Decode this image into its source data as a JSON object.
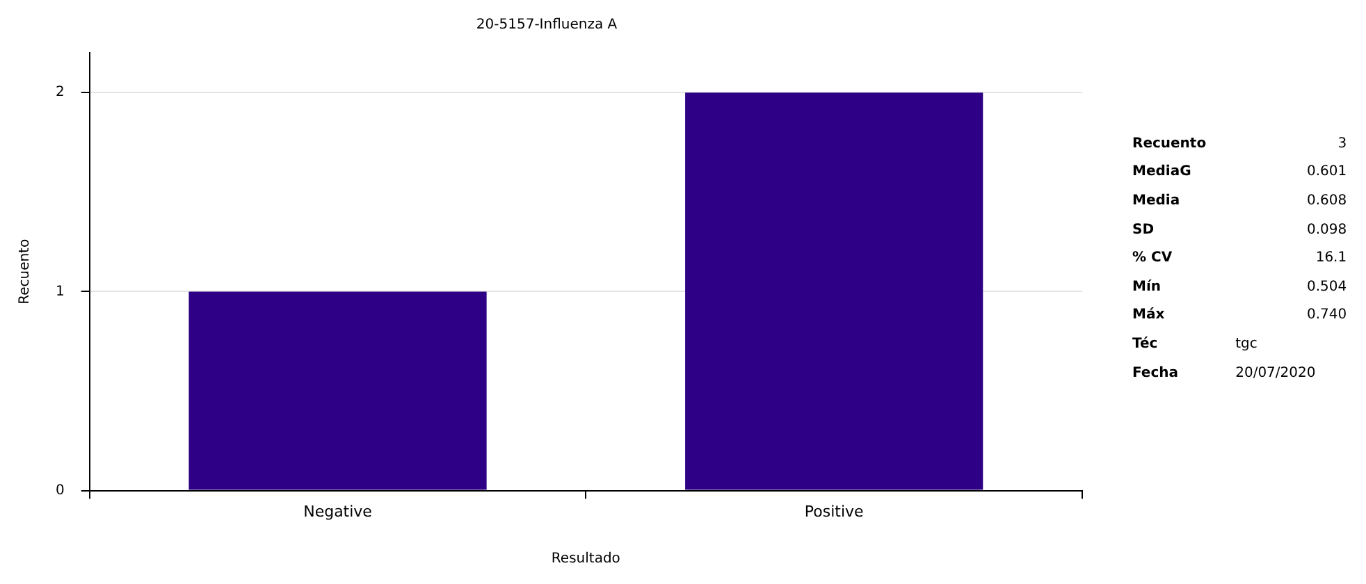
{
  "chart_data": {
    "type": "bar",
    "title": "20-5157-Influenza A",
    "xlabel": "Resultado",
    "ylabel": "Recuento",
    "categories": [
      "Negative",
      "Positive"
    ],
    "values": [
      1,
      2
    ],
    "color": "#2e0085",
    "ylim": [
      0,
      2.2
    ],
    "yticks": [
      0,
      1,
      2
    ],
    "grid": "y",
    "legend": false,
    "annotations": [
      "Recuento",
      "3",
      "MediaG",
      "0.601",
      "Media",
      "0.608",
      "SD",
      "0.098",
      "% CV",
      "16.1",
      "Mín",
      "0.504",
      "Máx",
      "0.740",
      "Téc",
      "tgc",
      "Fecha",
      "20/07/2020"
    ]
  }
}
